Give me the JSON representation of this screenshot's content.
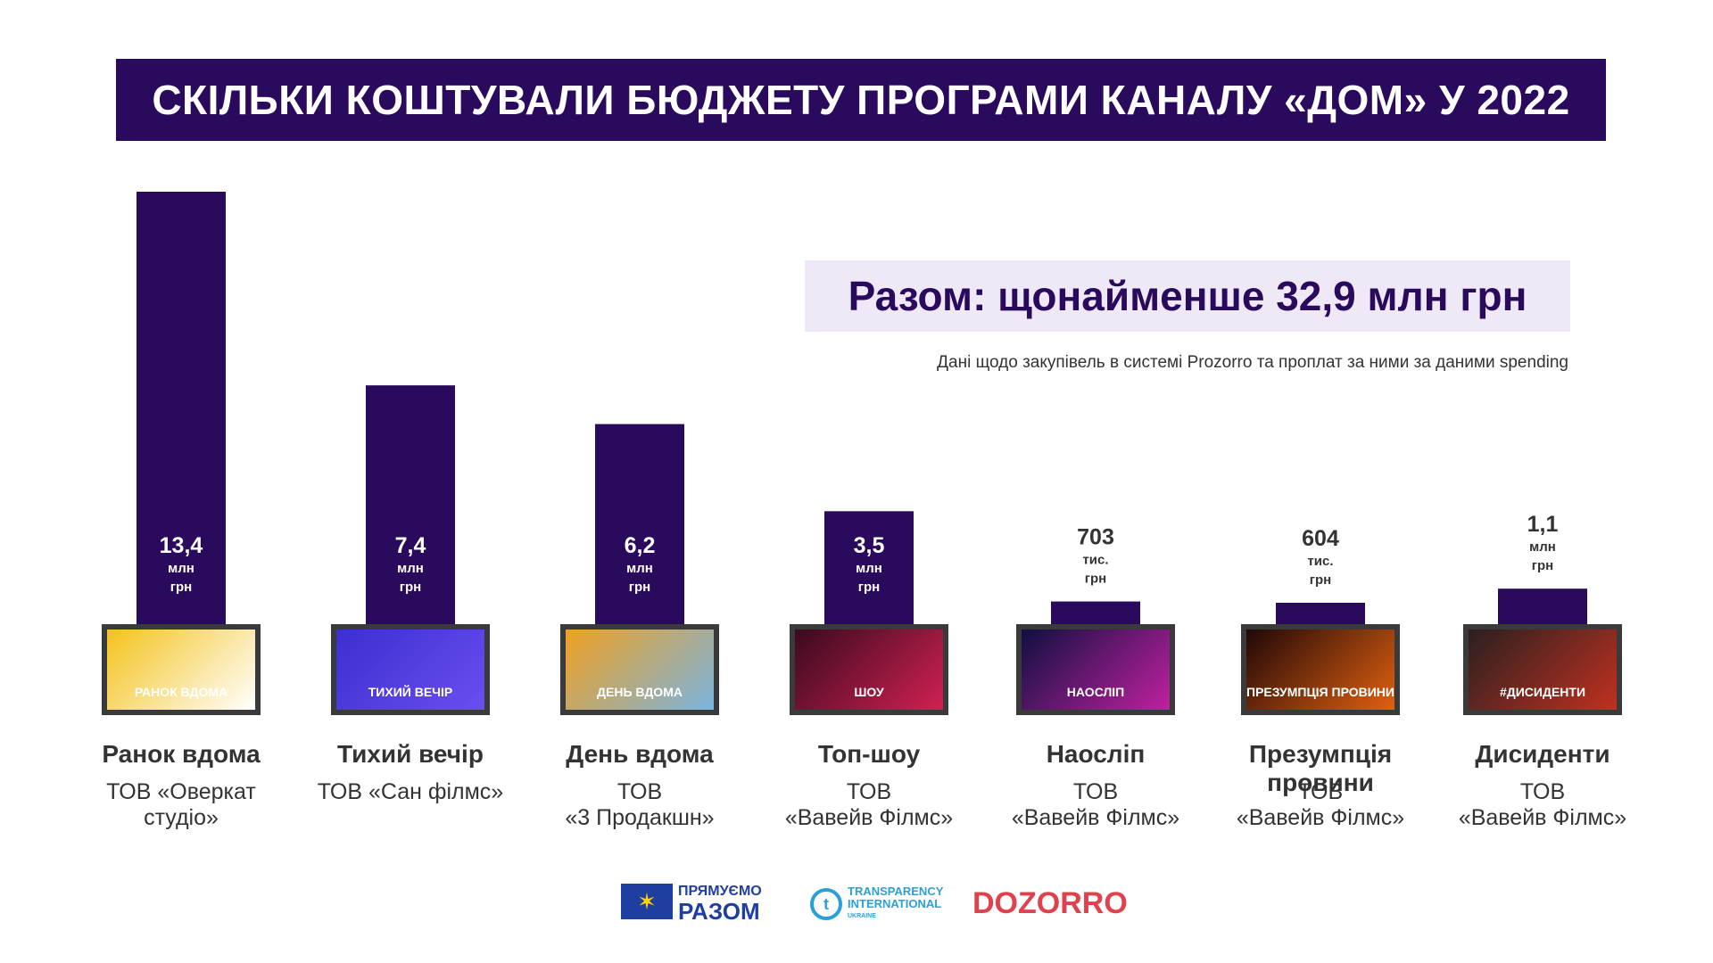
{
  "title": "СКІЛЬКИ КОШТУВАЛИ БЮДЖЕТУ ПРОГРАМИ КАНАЛУ «ДОМ» У 2022",
  "total": "Разом: щонайменше 32,9 млн грн",
  "source_note": "Дані щодо закупівель в системі Prozorro та проплат за ними за даними spending",
  "colors": {
    "bar": "#2a0a5c",
    "title_bg": "#2a0a5c",
    "total_bg": "#efe9f7"
  },
  "chart_data": {
    "type": "bar",
    "title": "СКІЛЬКИ КОШТУВАЛИ БЮДЖЕТУ ПРОГРАМИ КАНАЛУ «ДОМ» У 2022",
    "unit": "млн грн",
    "ylim": [
      0,
      13.4
    ],
    "categories": [
      "Ранок вдома",
      "Тихий вечір",
      "День вдома",
      "Топ-шоу",
      "Наосліп",
      "Презумпція провини",
      "Дисиденти"
    ],
    "values": [
      13.4,
      7.4,
      6.2,
      3.5,
      0.703,
      0.604,
      1.1
    ],
    "value_labels": [
      {
        "num": "13,4",
        "l1": "млн",
        "l2": "грн"
      },
      {
        "num": "7,4",
        "l1": "млн",
        "l2": "грн"
      },
      {
        "num": "6,2",
        "l1": "млн",
        "l2": "грн"
      },
      {
        "num": "3,5",
        "l1": "млн",
        "l2": "грн"
      },
      {
        "num": "703",
        "l1": "тис.",
        "l2": "грн"
      },
      {
        "num": "604",
        "l1": "тис.",
        "l2": "грн"
      },
      {
        "num": "1,1",
        "l1": "млн",
        "l2": "грн"
      }
    ]
  },
  "programs": [
    {
      "name": "Ранок вдома",
      "company": [
        "ТОВ «Оверкат",
        "студіо»"
      ],
      "thumb_caption": "РАНОК ВДОМА",
      "thumb_colors": [
        "#f4c21c",
        "#ffffff"
      ]
    },
    {
      "name": "Тихий вечір",
      "company": [
        "ТОВ «Сан філмс»"
      ],
      "thumb_caption": "ТИХИЙ ВЕЧІР",
      "thumb_colors": [
        "#3b2fd0",
        "#6a4ef0"
      ]
    },
    {
      "name": "День вдома",
      "company": [
        "ТОВ",
        "«3 Продакшн»"
      ],
      "thumb_caption": "ДЕНЬ ВДОМА",
      "thumb_colors": [
        "#f0a020",
        "#7bb4e0"
      ]
    },
    {
      "name": "Топ-шоу",
      "company": [
        "ТОВ",
        "«Вавейв Філмс»"
      ],
      "thumb_caption": "ШОУ",
      "thumb_colors": [
        "#3a0a20",
        "#d02050"
      ]
    },
    {
      "name": "Наосліп",
      "company": [
        "ТОВ",
        "«Вавейв Філмс»"
      ],
      "thumb_caption": "НАОСЛІП",
      "thumb_colors": [
        "#101040",
        "#c020a0"
      ]
    },
    {
      "name": "Презумпція провини",
      "company": [
        "ТОВ",
        "«Вавейв Філмс»"
      ],
      "thumb_caption": "ПРЕЗУМПЦІЯ ПРОВИНИ",
      "thumb_colors": [
        "#200808",
        "#e06010"
      ]
    },
    {
      "name": "Дисиденти",
      "company": [
        "ТОВ",
        "«Вавейв Філмс»"
      ],
      "thumb_caption": "#ДИСИДЕНТИ",
      "thumb_colors": [
        "#2a2020",
        "#c03020"
      ]
    }
  ],
  "logos": {
    "eu_line1": "ПРЯМУЄМО",
    "eu_line2": "РАЗОМ",
    "ti_line1": "TRANSPARENCY",
    "ti_line2": "INTERNATIONAL",
    "ti_line3": "UKRAINE",
    "dozorro": "DOZORRO"
  }
}
